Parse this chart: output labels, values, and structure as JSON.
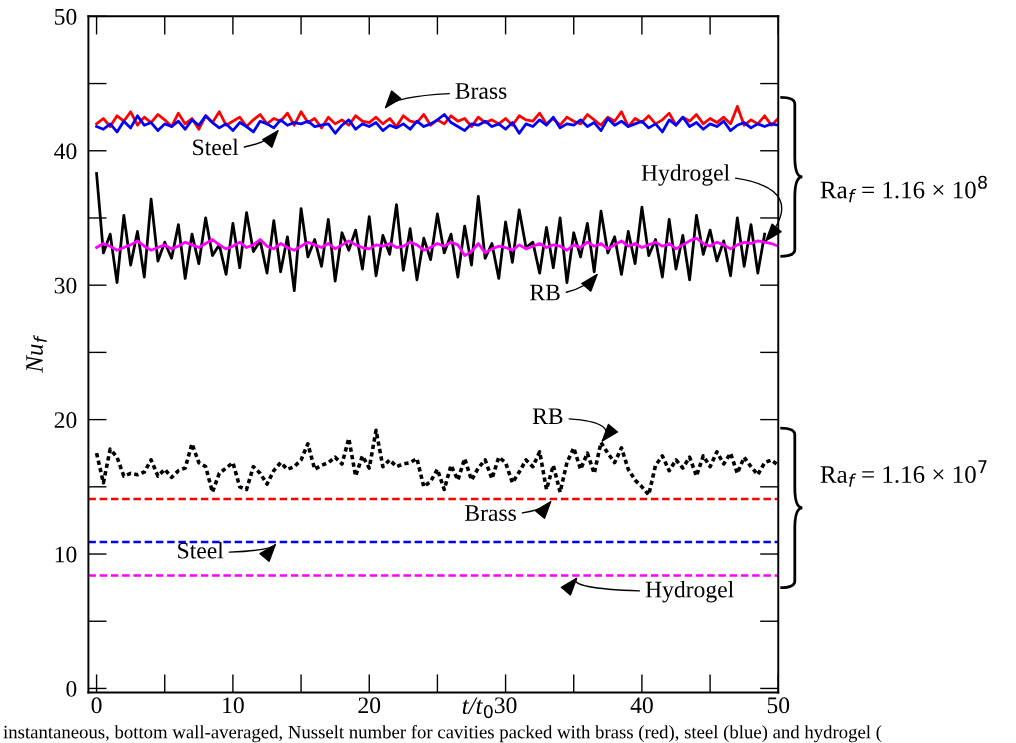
{
  "chart_data": {
    "type": "line",
    "xlabel": "t/t$_{0}$",
    "ylabel": "Nu$_{f}$",
    "xlim": [
      -0.6,
      50
    ],
    "ylim": [
      -0.3,
      50
    ],
    "xticks": [
      0,
      10,
      20,
      30,
      40,
      50
    ],
    "yticks": [
      0,
      10,
      20,
      30,
      40,
      50
    ],
    "grid": false,
    "marker": "none",
    "x": [
      0,
      0.5,
      1,
      1.5,
      2,
      2.5,
      3,
      3.5,
      4,
      4.5,
      5,
      5.5,
      6,
      6.5,
      7,
      7.5,
      8,
      8.5,
      9,
      9.5,
      10,
      10.5,
      11,
      11.5,
      12,
      12.5,
      13,
      13.5,
      14,
      14.5,
      15,
      15.5,
      16,
      16.5,
      17,
      17.5,
      18,
      18.5,
      19,
      19.5,
      20,
      20.5,
      21,
      21.5,
      22,
      22.5,
      23,
      23.5,
      24,
      24.5,
      25,
      25.5,
      26,
      26.5,
      27,
      27.5,
      28,
      28.5,
      29,
      29.5,
      30,
      30.5,
      31,
      31.5,
      32,
      32.5,
      33,
      33.5,
      34,
      34.5,
      35,
      35.5,
      36,
      36.5,
      37,
      37.5,
      38,
      38.5,
      39,
      39.5,
      40,
      40.5,
      41,
      41.5,
      42,
      42.5,
      43,
      43.5,
      44,
      44.5,
      45,
      45.5,
      46,
      46.5,
      47,
      47.5,
      48,
      48.5,
      49,
      49.5,
      50
    ],
    "series": [
      {
        "color": "#000000",
        "line_style": "solid",
        "x": [
          0,
          0.5,
          1,
          1.5,
          2,
          2.5,
          3,
          3.5,
          4,
          4.5,
          5,
          5.5,
          6,
          6.5,
          7,
          7.5,
          8,
          8.5,
          9,
          9.5,
          10,
          10.5,
          11,
          11.5,
          12,
          12.5,
          13,
          13.5,
          14,
          14.5,
          15,
          15.5,
          16,
          16.5,
          17,
          17.5,
          18,
          18.5,
          19,
          19.5,
          20,
          20.5,
          21,
          21.5,
          22,
          22.5,
          23,
          23.5,
          24,
          24.5,
          25,
          25.5,
          26,
          26.5,
          27,
          27.5,
          28,
          28.5,
          29,
          29.5,
          30,
          30.5,
          31,
          31.5,
          32,
          32.5,
          33,
          33.5,
          34,
          34.5,
          35,
          35.5,
          36,
          36.5,
          37,
          37.5,
          38,
          38.5,
          39,
          39.5,
          40,
          40.5,
          41,
          41.5,
          42,
          42.5,
          43,
          43.5,
          44,
          44.5,
          45,
          45.5,
          46,
          46.5,
          47,
          47.5,
          48,
          48.5,
          49
        ],
        "values": [
          38.3,
          32.4,
          33.8,
          30.2,
          35.2,
          31.5,
          34.0,
          30.6,
          36.4,
          31.8,
          33.2,
          32.0,
          34.5,
          30.5,
          33.8,
          31.6,
          35.0,
          32.2,
          33.0,
          30.8,
          34.6,
          31.3,
          35.4,
          32.5,
          33.3,
          30.9,
          34.8,
          31.0,
          33.6,
          29.6,
          35.7,
          32.1,
          33.4,
          31.4,
          34.9,
          30.3,
          33.9,
          32.6,
          34.1,
          31.2,
          35.1,
          30.7,
          33.7,
          32.3,
          36.0,
          31.1,
          34.2,
          30.4,
          33.5,
          31.9,
          35.3,
          32.4,
          33.8,
          30.6,
          34.4,
          31.5,
          36.6,
          32.0,
          33.1,
          30.5,
          34.7,
          31.7,
          35.6,
          32.8,
          33.2,
          30.9,
          34.3,
          31.3,
          35.0,
          30.2,
          33.9,
          32.1,
          34.6,
          31.0,
          35.5,
          32.4,
          33.6,
          30.8,
          34.0,
          31.6,
          35.8,
          32.2,
          33.4,
          30.6,
          34.9,
          31.2,
          33.7,
          30.4,
          35.2,
          32.3,
          34.1,
          31.8,
          33.3,
          30.7,
          35.0,
          31.4,
          34.5,
          30.9,
          33.8
        ]
      },
      {
        "color": "#ff0000",
        "line_style": "solid",
        "values": [
          42.0,
          42.4,
          41.8,
          42.6,
          42.2,
          42.9,
          41.9,
          42.5,
          42.1,
          42.7,
          42.3,
          41.8,
          42.8,
          42.0,
          42.4,
          41.6,
          42.6,
          42.1,
          42.9,
          41.9,
          42.2,
          42.5,
          41.8,
          42.3,
          42.7,
          42.0,
          42.4,
          42.2,
          42.8,
          41.9,
          42.9,
          42.1,
          42.4,
          41.7,
          42.5,
          42.0,
          42.3,
          41.9,
          42.6,
          42.2,
          42.1,
          42.5,
          42.0,
          42.4,
          41.8,
          42.6,
          42.2,
          42.1,
          42.7,
          41.9,
          42.3,
          42.0,
          42.6,
          42.2,
          42.4,
          41.8,
          42.5,
          42.1,
          42.3,
          42.0,
          42.4,
          41.9,
          42.6,
          42.3,
          42.2,
          42.8,
          42.0,
          42.4,
          41.9,
          42.5,
          42.2,
          42.0,
          42.7,
          42.3,
          41.9,
          42.5,
          42.2,
          42.9,
          41.8,
          42.4,
          42.1,
          42.6,
          42.0,
          42.3,
          42.8,
          41.9,
          42.5,
          42.2,
          42.7,
          42.0,
          42.4,
          42.1,
          42.5,
          42.0,
          43.3,
          41.9,
          42.3,
          42.0,
          42.6,
          41.9,
          42.4
        ]
      },
      {
        "color": "#0000ff",
        "line_style": "solid",
        "values": [
          41.8,
          41.6,
          42.0,
          41.4,
          42.2,
          41.7,
          42.6,
          41.9,
          42.1,
          41.5,
          42.0,
          41.8,
          42.2,
          41.6,
          42.3,
          41.9,
          42.6,
          42.1,
          41.7,
          42.0,
          41.5,
          42.1,
          41.8,
          41.4,
          42.2,
          42.0,
          41.7,
          42.3,
          41.9,
          42.1,
          42.0,
          42.2,
          41.8,
          41.9,
          42.0,
          41.3,
          41.9,
          42.3,
          41.6,
          42.0,
          41.8,
          42.1,
          41.5,
          41.9,
          41.7,
          42.0,
          41.6,
          42.2,
          41.8,
          42.0,
          42.3,
          42.7,
          42.1,
          41.8,
          41.5,
          42.0,
          41.9,
          42.2,
          41.8,
          42.0,
          41.6,
          42.1,
          41.3,
          42.0,
          41.8,
          42.3,
          41.9,
          42.5,
          41.7,
          42.0,
          41.9,
          42.3,
          41.8,
          42.1,
          41.5,
          42.4,
          41.9,
          42.2,
          41.8,
          42.0,
          42.2,
          41.7,
          42.0,
          41.4,
          42.3,
          41.9,
          42.5,
          41.8,
          42.1,
          41.6,
          42.0,
          41.8,
          42.2,
          41.5,
          41.9,
          42.1,
          41.7,
          42.0,
          41.8,
          42.0,
          41.9
        ]
      },
      {
        "color": "#ff00ff",
        "line_style": "solid",
        "values": [
          32.8,
          33.1,
          32.9,
          32.6,
          32.8,
          33.0,
          33.3,
          32.9,
          32.6,
          32.8,
          33.0,
          32.7,
          32.9,
          33.2,
          33.0,
          32.8,
          33.1,
          33.4,
          33.0,
          32.7,
          32.9,
          33.2,
          32.8,
          33.0,
          33.4,
          32.9,
          32.7,
          33.1,
          32.8,
          32.6,
          32.9,
          33.2,
          33.0,
          32.8,
          33.1,
          32.7,
          33.0,
          33.3,
          33.0,
          32.8,
          32.7,
          33.0,
          32.9,
          33.1,
          32.8,
          32.9,
          33.2,
          33.0,
          32.6,
          32.8,
          33.1,
          32.9,
          33.2,
          33.0,
          32.2,
          32.5,
          33.1,
          32.4,
          32.7,
          32.9,
          32.8,
          32.6,
          33.0,
          32.7,
          32.9,
          33.1,
          32.8,
          33.0,
          32.9,
          32.6,
          33.0,
          32.8,
          33.2,
          32.9,
          33.1,
          32.7,
          33.0,
          33.3,
          32.9,
          33.1,
          32.8,
          33.0,
          33.2,
          32.9,
          33.1,
          32.7,
          33.0,
          33.3,
          33.5,
          33.1,
          32.9,
          33.2,
          33.0,
          32.7,
          33.0,
          33.2,
          33.1,
          33.3,
          33.2,
          33.1,
          32.9
        ]
      },
      {
        "color": "#000000",
        "line_style": "dotted",
        "values": [
          17.5,
          15.3,
          17.8,
          17.2,
          15.8,
          16.0,
          15.9,
          16.1,
          17.0,
          15.8,
          16.3,
          15.7,
          16.2,
          16.4,
          18.2,
          16.8,
          16.5,
          14.6,
          16.0,
          16.4,
          16.8,
          15.0,
          14.8,
          16.5,
          16.0,
          15.2,
          16.2,
          16.8,
          16.3,
          16.5,
          17.0,
          18.2,
          16.3,
          16.6,
          16.8,
          17.2,
          16.7,
          18.6,
          15.8,
          17.3,
          16.4,
          19.2,
          16.5,
          17.0,
          16.5,
          16.7,
          16.8,
          17.1,
          15.0,
          15.4,
          16.3,
          14.8,
          16.6,
          15.5,
          17.1,
          15.5,
          16.4,
          17.0,
          15.6,
          17.2,
          16.8,
          15.3,
          16.1,
          17.0,
          16.5,
          17.6,
          14.8,
          16.6,
          14.6,
          16.8,
          17.9,
          16.3,
          17.5,
          16.0,
          18.3,
          17.5,
          16.8,
          17.9,
          16.3,
          15.5,
          15.0,
          14.4,
          16.6,
          17.3,
          16.2,
          17.0,
          16.4,
          17.2,
          15.8,
          17.3,
          16.5,
          17.6,
          16.7,
          17.5,
          16.0,
          17.2,
          16.5,
          15.9,
          16.8,
          17.0,
          16.6
        ]
      }
    ],
    "ref_lines": [
      {
        "axis": "y",
        "value": 14.1,
        "color": "#ff0000",
        "line_style": "dashed",
        "label": "Brass"
      },
      {
        "axis": "y",
        "value": 10.9,
        "color": "#0000ff",
        "line_style": "dashed",
        "label": "Steel"
      },
      {
        "axis": "y",
        "value": 8.4,
        "color": "#ff00ff",
        "line_style": "dashed",
        "label": "Hydrogel"
      }
    ],
    "annotations": [
      "Brass",
      "Steel",
      {
        "text": "Hydrogel",
        "x": 49.0,
        "y": 33.2
      },
      "RB",
      {
        "text": "RB",
        "x": 37.0,
        "y": 18.3
      },
      "Ra$_{f}$ = 1.16 × 10$^{8}$",
      "Ra$_{f}$ = 1.16 × 10$^{7}$",
      "instantaneous, bottom wall-averaged, Nusselt number for cavities packed with brass (red), steel (blue) and hydrogel ("
    ]
  }
}
